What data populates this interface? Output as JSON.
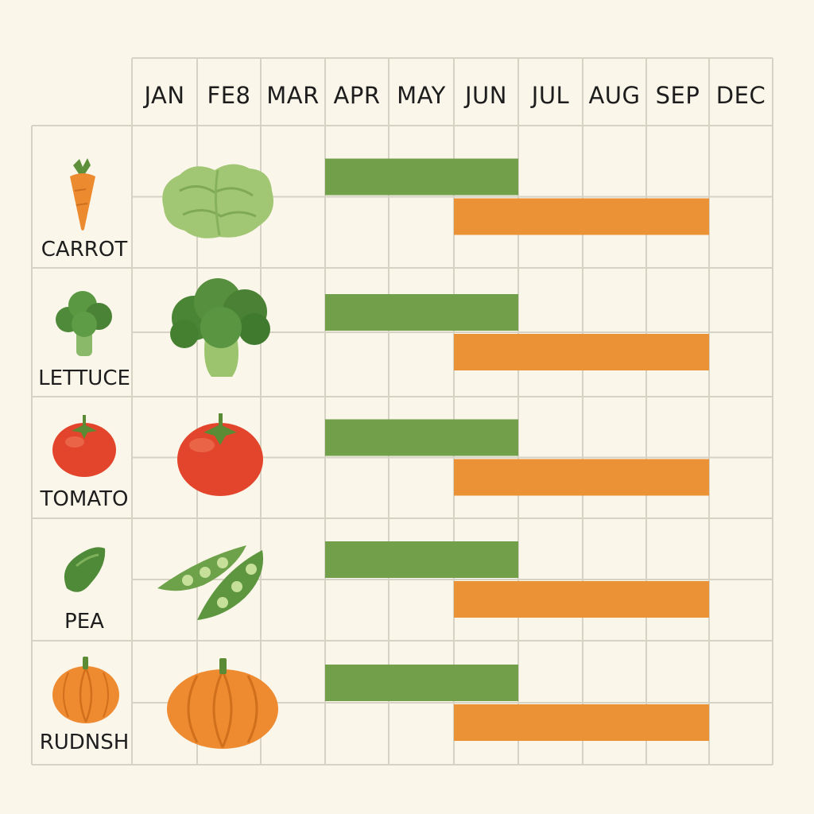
{
  "chart_data": {
    "type": "gantt",
    "categories": [
      "JAN",
      "FE8",
      "MAR",
      "APR",
      "MAY",
      "JUN",
      "JUL",
      "AUG",
      "SEP",
      "DEC"
    ],
    "rows": [
      {
        "label": "CARROT",
        "icon": "carrot-icon"
      },
      {
        "label": "LETTUCE",
        "icon": "lettuce-icon"
      },
      {
        "label": "TOMATO",
        "icon": "tomato-icon"
      },
      {
        "label": "PEA",
        "icon": "pea-icon"
      },
      {
        "label": "RUDNSH",
        "icon": "pumpkin-icon"
      }
    ],
    "series": [
      {
        "name": "green",
        "color": "#72a04a",
        "spans": [
          [
            3,
            6
          ],
          [
            3,
            6
          ],
          [
            3,
            6
          ],
          [
            3,
            6
          ],
          [
            3,
            6
          ]
        ]
      },
      {
        "name": "orange",
        "color": "#eb9236",
        "spans": [
          [
            5,
            9
          ],
          [
            5,
            9
          ],
          [
            5,
            9
          ],
          [
            5,
            9
          ],
          [
            5,
            9
          ]
        ]
      }
    ]
  }
}
